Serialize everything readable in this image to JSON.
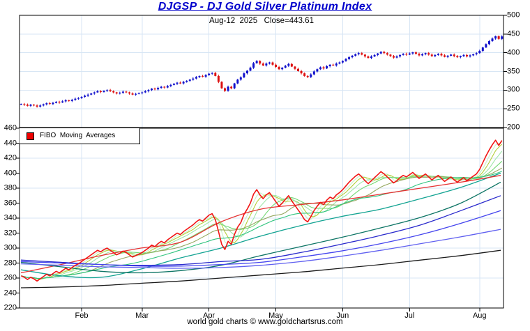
{
  "page": {
    "title": "DJGSP - DJ Gold Silver Platinum Index",
    "subtitle": "Aug-12  2025   Close=443.61",
    "footer": "world gold charts © www.goldchartsrus.com"
  },
  "legend": {
    "label": "FIBO  Moving  Averages",
    "swatch_color": "#ee0000"
  },
  "colors": {
    "title": "#0000cc",
    "candle_up": "#1111cc",
    "candle_down": "#dd1111",
    "price_line": "#f21414",
    "grid": "#d7e5f4",
    "frame": "#000000"
  },
  "chart_data": [
    {
      "id": "upper-candlestick",
      "type": "candlestick",
      "title": "DJGSP - DJ Gold Silver Platinum Index",
      "annotation": "Aug-12  2025   Close=443.61",
      "last_close": 443.61,
      "ylim": [
        200,
        500
      ],
      "yticks": [
        500,
        450,
        400,
        350,
        300,
        250,
        200
      ],
      "grid_y": [
        450,
        400,
        350,
        300,
        250
      ],
      "axis_side": "right",
      "months": {
        "labels": [
          "Feb",
          "Mar",
          "Apr",
          "May",
          "Jun",
          "Jul",
          "Aug"
        ],
        "first_day_index": [
          19,
          38,
          59,
          80,
          101,
          122,
          144
        ]
      },
      "days_total": 152,
      "closes": [
        263,
        261,
        258,
        261,
        259,
        256,
        259,
        262,
        265,
        263,
        266,
        269,
        267,
        270,
        273,
        271,
        274,
        277,
        279,
        282,
        285,
        288,
        291,
        294,
        297,
        295,
        298,
        300,
        297,
        294,
        291,
        293,
        296,
        294,
        291,
        288,
        290,
        292,
        294,
        297,
        300,
        304,
        302,
        306,
        309,
        307,
        311,
        314,
        317,
        320,
        318,
        322,
        325,
        328,
        331,
        335,
        338,
        336,
        340,
        344,
        346,
        338,
        322,
        305,
        298,
        309,
        305,
        318,
        328,
        334,
        345,
        352,
        360,
        372,
        378,
        371,
        366,
        371,
        374,
        368,
        362,
        356,
        360,
        365,
        370,
        363,
        357,
        351,
        345,
        338,
        335,
        342,
        350,
        356,
        361,
        358,
        364,
        368,
        366,
        371,
        374,
        378,
        383,
        388,
        392,
        396,
        399,
        395,
        390,
        386,
        390,
        394,
        398,
        402,
        399,
        395,
        391,
        387,
        390,
        394,
        397,
        395,
        398,
        401,
        397,
        393,
        396,
        399,
        395,
        391,
        394,
        397,
        393,
        389,
        392,
        395,
        391,
        388,
        391,
        394,
        390,
        393,
        396,
        399,
        405,
        414,
        423,
        431,
        438,
        444,
        437,
        443.61
      ]
    },
    {
      "id": "lower-fibo-ma",
      "type": "line",
      "legend": "FIBO  Moving  Averages",
      "ylim": [
        220,
        460
      ],
      "yticks": [
        460,
        440,
        420,
        400,
        380,
        360,
        340,
        320,
        300,
        280,
        260,
        240,
        220
      ],
      "grid_y": [
        420,
        380,
        340,
        300,
        260
      ],
      "axis_side": "left",
      "price_series": {
        "name": "close",
        "color": "#f21414",
        "width": 1.6,
        "source": "upper.closes"
      },
      "fast_series": [
        {
          "name": "fibo-ma-3",
          "window": 3,
          "color": "#c9f0c9"
        },
        {
          "name": "fibo-ma-5",
          "window": 5,
          "color": "#b3cf3a"
        },
        {
          "name": "fibo-ma-8",
          "window": 8,
          "color": "#9fe6a8"
        },
        {
          "name": "fibo-ma-13",
          "window": 13,
          "color": "#74d874"
        },
        {
          "name": "fibo-ma-21",
          "window": 21,
          "color": "#96a860"
        },
        {
          "name": "fibo-ma-34",
          "window": 34,
          "color": "#2fc47e"
        }
      ],
      "slow_series": [
        {
          "name": "fibo-ma-teal",
          "color": "#12a392",
          "values": [
            271,
            263,
            261,
            272,
            287,
            300,
            316,
            330,
            342,
            352,
            366,
            381,
            400
          ]
        },
        {
          "name": "fibo-ma-red",
          "color": "#e63232",
          "values": [
            267,
            278,
            290,
            300,
            308,
            335,
            352,
            358,
            364,
            372,
            380,
            388,
            397
          ]
        },
        {
          "name": "fibo-ma-darkteal",
          "color": "#0c7464",
          "values": [
            281,
            275,
            269,
            267,
            270,
            277,
            290,
            302,
            314,
            327,
            341,
            360,
            388
          ]
        },
        {
          "name": "fibo-ma-navy",
          "color": "#2929cc",
          "values": [
            284,
            281,
            278,
            277,
            278,
            282,
            285,
            294,
            305,
            317,
            331,
            350,
            370
          ]
        },
        {
          "name": "fibo-ma-blue",
          "color": "#4545ee",
          "values": [
            282,
            280,
            278,
            276,
            276,
            278,
            281,
            288,
            296,
            306,
            318,
            333,
            350
          ]
        },
        {
          "name": "fibo-ma-lightblue",
          "color": "#6060f0",
          "values": [
            279,
            277,
            275,
            274,
            273,
            274,
            277,
            282,
            289,
            297,
            306,
            315,
            325
          ]
        },
        {
          "name": "fibo-ma-black",
          "color": "#1a1a1a",
          "values": [
            247,
            248,
            250,
            253,
            256,
            260,
            264,
            268,
            273,
            278,
            284,
            290,
            297
          ]
        }
      ]
    }
  ]
}
